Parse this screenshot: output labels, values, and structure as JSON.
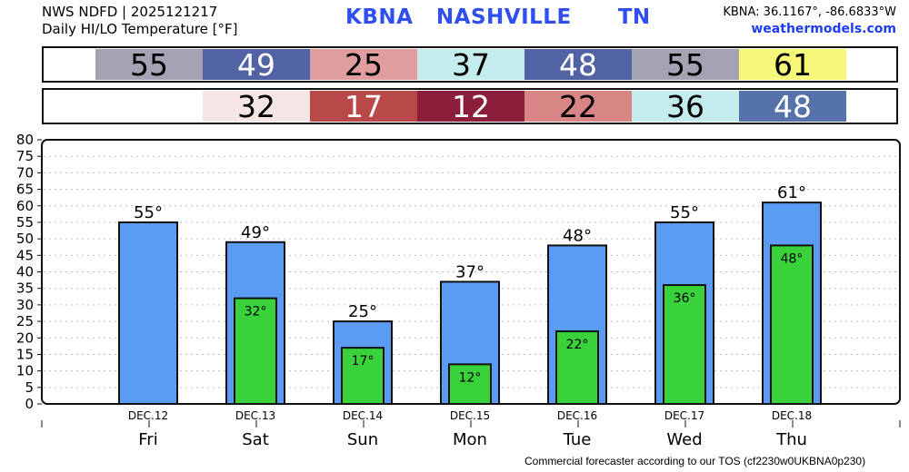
{
  "header": {
    "line1": "NWS NDFD | 2025121217",
    "line2": "Daily HI/LO Temperature [°F]",
    "station": "KBNA   NASHVILLE      TN",
    "coords": "KBNA: 36.1167°, -86.6833°W",
    "site": "weathermodels.com"
  },
  "footer": "Commercial forecaster according to our TOS (cf2230w0UKBNA0p230)",
  "hi_band": [
    {
      "value": "55",
      "bg": "#a5a3b3",
      "fg": "#000000"
    },
    {
      "value": "49",
      "bg": "#5163a4",
      "fg": "#ffffff"
    },
    {
      "value": "25",
      "bg": "#df9d9d",
      "fg": "#000000"
    },
    {
      "value": "37",
      "bg": "#c5ecec",
      "fg": "#000000"
    },
    {
      "value": "48",
      "bg": "#5163a4",
      "fg": "#ffffff"
    },
    {
      "value": "55",
      "bg": "#a5a3b3",
      "fg": "#000000"
    },
    {
      "value": "61",
      "bg": "#f7f77a",
      "fg": "#000000"
    }
  ],
  "lo_band": [
    {
      "value": "",
      "bg": "#ffffff",
      "fg": "#000000"
    },
    {
      "value": "32",
      "bg": "#f6e5e5",
      "fg": "#000000"
    },
    {
      "value": "17",
      "bg": "#b94848",
      "fg": "#ffffff"
    },
    {
      "value": "12",
      "bg": "#8b1f3b",
      "fg": "#ffffff"
    },
    {
      "value": "22",
      "bg": "#d88585",
      "fg": "#000000"
    },
    {
      "value": "36",
      "bg": "#c5ecec",
      "fg": "#000000"
    },
    {
      "value": "48",
      "bg": "#5672aa",
      "fg": "#ffffff"
    }
  ],
  "chart_data": {
    "type": "bar",
    "categories": [
      "DEC.12",
      "DEC.13",
      "DEC.14",
      "DEC.15",
      "DEC.16",
      "DEC.17",
      "DEC.18"
    ],
    "days": [
      "Fri",
      "Sat",
      "Sun",
      "Mon",
      "Tue",
      "Wed",
      "Thu"
    ],
    "series": [
      {
        "values": [
          55,
          49,
          25,
          37,
          48,
          55,
          61
        ],
        "color": "#5b9bf2"
      },
      {
        "values": [
          null,
          32,
          17,
          12,
          22,
          36,
          48
        ],
        "color": "#3ad23a"
      }
    ],
    "hi_labels": [
      "55°",
      "49°",
      "25°",
      "37°",
      "48°",
      "55°",
      "61°"
    ],
    "lo_labels": [
      "",
      "32°",
      "17°",
      "12°",
      "22°",
      "36°",
      "48°"
    ],
    "ylim": [
      0,
      80
    ],
    "yticks": [
      0,
      5,
      10,
      15,
      20,
      25,
      30,
      35,
      40,
      45,
      50,
      55,
      60,
      65,
      70,
      75,
      80
    ],
    "grid": true
  }
}
